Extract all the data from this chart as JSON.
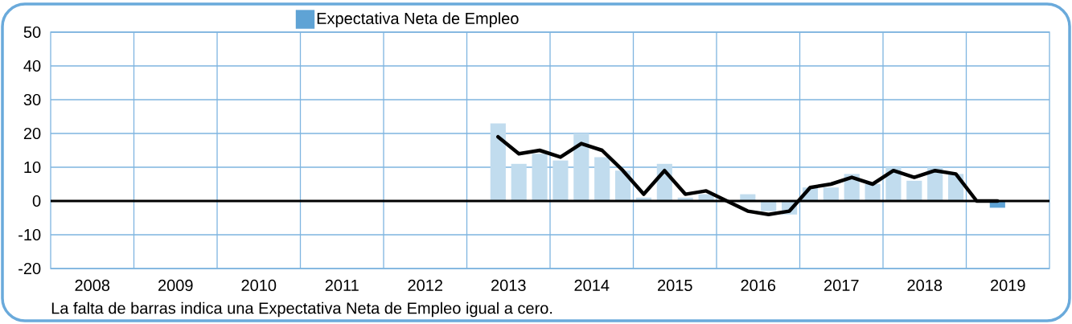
{
  "chart_data": {
    "type": "bar",
    "x": [
      2013.375,
      2013.625,
      2013.875,
      2014.125,
      2014.375,
      2014.625,
      2014.875,
      2015.125,
      2015.375,
      2015.625,
      2015.875,
      2016.125,
      2016.375,
      2016.625,
      2016.875,
      2017.125,
      2017.375,
      2017.625,
      2017.875,
      2018.125,
      2018.375,
      2018.625,
      2018.875,
      2019.125,
      2019.375
    ],
    "series": [
      {
        "name": "Expectativa Neta de Empleo",
        "color": "#5fa3d5",
        "colors": [
          "#c1dcee",
          "#c1dcee",
          "#c1dcee",
          "#c1dcee",
          "#c1dcee",
          "#c1dcee",
          "#c1dcee",
          "#c1dcee",
          "#c1dcee",
          "#c1dcee",
          "#c1dcee",
          "#c1dcee",
          "#c1dcee",
          "#c1dcee",
          "#c1dcee",
          "#c1dcee",
          "#c1dcee",
          "#c1dcee",
          "#c1dcee",
          "#c1dcee",
          "#c1dcee",
          "#c1dcee",
          "#c1dcee",
          "#c1dcee",
          "#5fa3d5"
        ],
        "values": [
          23,
          11,
          14,
          12,
          20,
          13,
          9,
          1,
          11,
          1,
          2,
          0,
          2,
          -3,
          -4,
          4,
          4,
          8,
          5,
          10,
          6,
          10,
          8,
          0,
          -2
        ]
      },
      {
        "type": "line",
        "color": "#000000",
        "line_style": "solid",
        "values": [
          19,
          14,
          15,
          13,
          17,
          15,
          9,
          2,
          9,
          2,
          3,
          0,
          -3,
          -4,
          -3,
          4,
          5,
          7,
          5,
          9,
          7,
          9,
          8,
          0,
          0
        ]
      }
    ],
    "xlim": [
      2008,
      2020
    ],
    "xticks": [
      {
        "value": 2008.5,
        "label": "2008"
      },
      {
        "value": 2009,
        "label": null
      },
      {
        "value": 2009.5,
        "label": "2009"
      },
      {
        "value": 2010,
        "label": null
      },
      {
        "value": 2010.5,
        "label": "2010"
      },
      {
        "value": 2011,
        "label": null
      },
      {
        "value": 2011.5,
        "label": "2011"
      },
      {
        "value": 2012,
        "label": null
      },
      {
        "value": 2012.5,
        "label": "2012"
      },
      {
        "value": 2013,
        "label": null
      },
      {
        "value": 2013.5,
        "label": "2013"
      },
      {
        "value": 2014,
        "label": null
      },
      {
        "value": 2014.5,
        "label": "2014"
      },
      {
        "value": 2015,
        "label": null
      },
      {
        "value": 2015.5,
        "label": "2015"
      },
      {
        "value": 2016,
        "label": null
      },
      {
        "value": 2016.5,
        "label": "2016"
      },
      {
        "value": 2017,
        "label": null
      },
      {
        "value": 2017.5,
        "label": "2017"
      },
      {
        "value": 2018,
        "label": null
      },
      {
        "value": 2018.5,
        "label": "2018"
      },
      {
        "value": 2019,
        "label": null
      },
      {
        "value": 2019.5,
        "label": "2019"
      }
    ],
    "ylim": [
      -20,
      50
    ],
    "yticks": [
      -20,
      -10,
      0,
      10,
      20,
      30,
      40,
      50
    ],
    "grid": true,
    "legend": "top",
    "ref_lines": [
      {
        "axis": "y",
        "value": 0,
        "color": "#000000"
      }
    ],
    "annotations": [
      "La falta de barras indica una Expectativa Neta de Empleo igual a cero."
    ]
  }
}
